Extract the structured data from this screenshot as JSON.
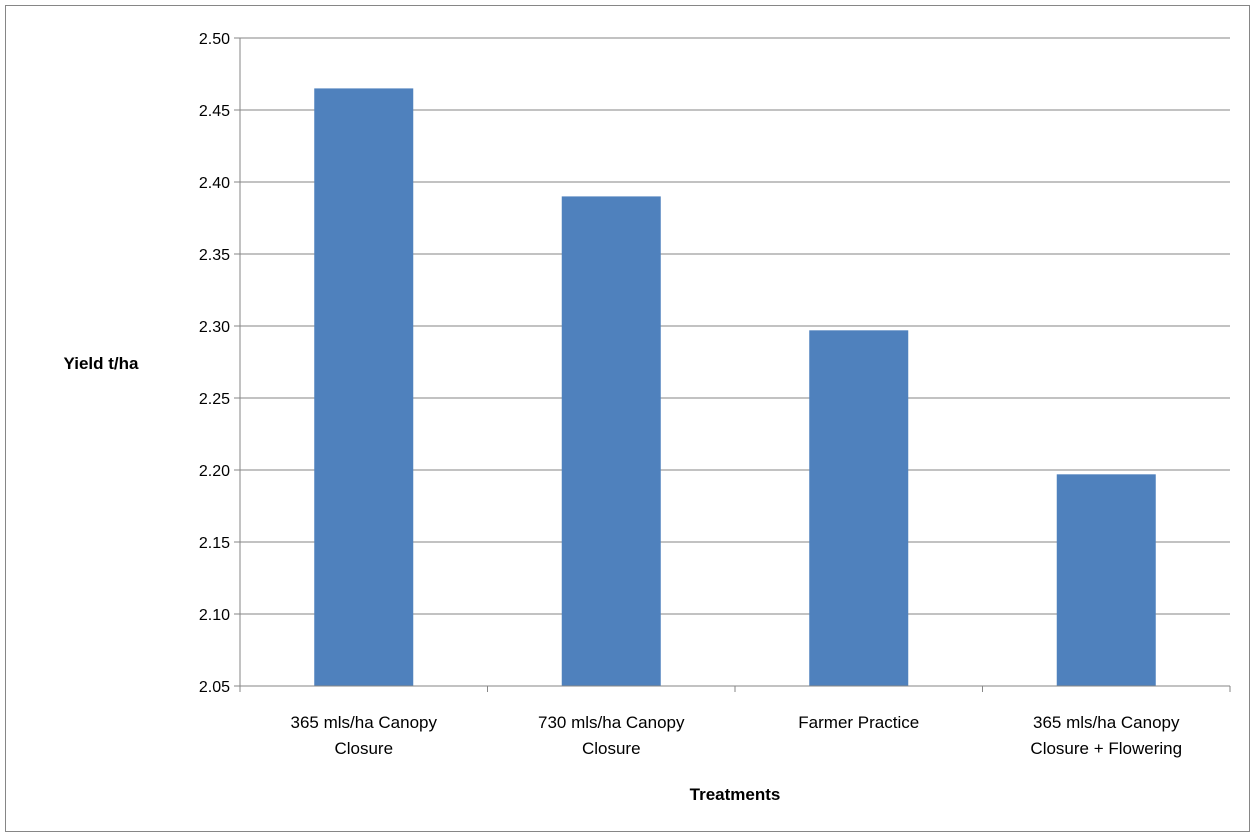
{
  "chart_data": {
    "type": "bar",
    "title": "",
    "categories": [
      [
        "365 mls/ha Canopy",
        "Closure"
      ],
      [
        "730 mls/ha Canopy",
        "Closure"
      ],
      [
        "Farmer Practice"
      ],
      [
        "365 mls/ha Canopy",
        "Closure + Flowering"
      ]
    ],
    "values": [
      2.465,
      2.39,
      2.297,
      2.197
    ],
    "xlabel": "Treatments",
    "ylabel": "Yield t/ha",
    "ylim": [
      2.05,
      2.5
    ],
    "yticks": [
      "2.05",
      "2.10",
      "2.15",
      "2.20",
      "2.25",
      "2.30",
      "2.35",
      "2.40",
      "2.45",
      "2.50"
    ],
    "grid": true,
    "legend": "none",
    "bar_color": "#4f81bd",
    "grid_color": "#868686"
  }
}
